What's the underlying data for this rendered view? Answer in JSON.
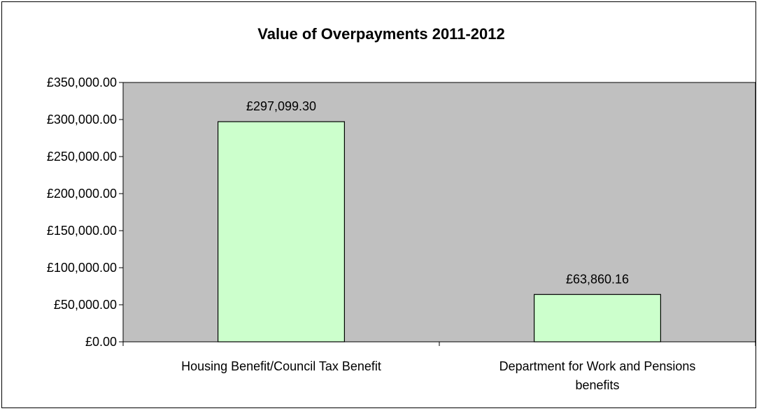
{
  "chart_data": {
    "type": "bar",
    "title": "Value of Overpayments 2011-2012",
    "xlabel": "",
    "ylabel": "",
    "categories": [
      [
        "Housing Benefit/Council Tax Benefit"
      ],
      [
        "Department for Work and Pensions",
        "benefits"
      ]
    ],
    "values": [
      297099.3,
      63860.16
    ],
    "data_labels": [
      "£297,099.30",
      "£63,860.16"
    ],
    "ylim": [
      0,
      350000
    ],
    "yticks": [
      0,
      50000,
      100000,
      150000,
      200000,
      250000,
      300000,
      350000
    ],
    "ytick_labels": [
      "£0.00",
      "£50,000.00",
      "£100,000.00",
      "£150,000.00",
      "£200,000.00",
      "£250,000.00",
      "£300,000.00",
      "£350,000.00"
    ],
    "grid": false,
    "legend": "none",
    "colors": {
      "plot_background": "#c0c0c0",
      "bar_fill": "#ccffcc",
      "bar_stroke": "#000000",
      "axis": "#000000"
    }
  }
}
